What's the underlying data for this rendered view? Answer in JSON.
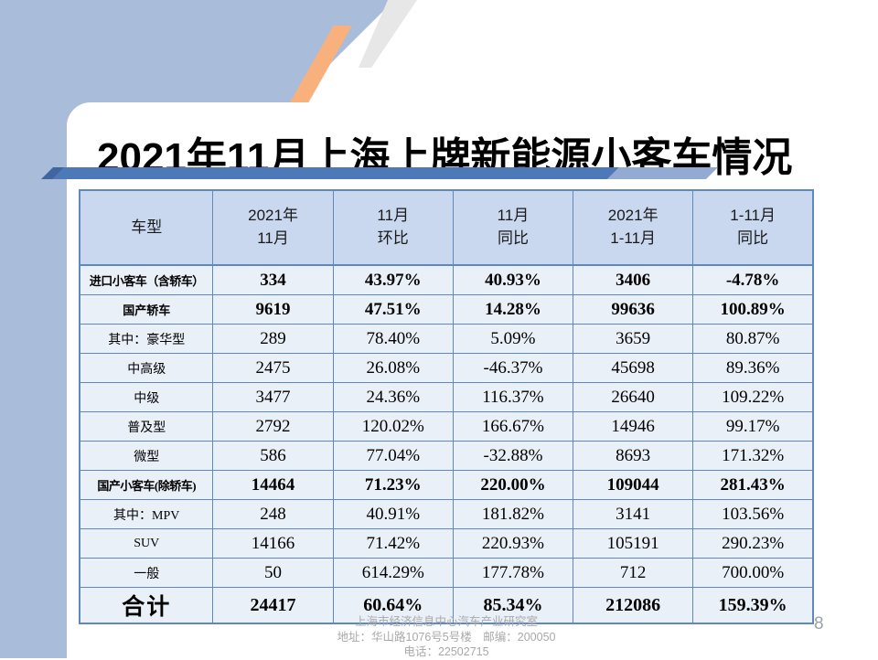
{
  "slide": {
    "title": "2021年11月上海上牌新能源小客车情况",
    "page_number": "8",
    "footer": {
      "line1": "上海市经济信息中心汽车产业研究室",
      "line2": "地址：华山路1076号5号楼　邮编：200050",
      "line3": "电话：22502715"
    }
  },
  "colors": {
    "band_blue": "#a9bcd9",
    "accent_bar_blue": "#4d79b8",
    "accent_bar_light": "#93abd3",
    "accent_bar_dark": "#40669f",
    "stripe_orange": "#f8b17c",
    "stripe_gray": "#e7e7e7",
    "table_border": "#5f88bd",
    "header_fill": "#c9d8ef",
    "row_fill": "#eaf0f8",
    "footer_gray": "#a9a9a9"
  },
  "table": {
    "headers": [
      {
        "l1": "车型",
        "l2": ""
      },
      {
        "l1": "2021年",
        "l2": "11月"
      },
      {
        "l1": "11月",
        "l2": "环比"
      },
      {
        "l1": "11月",
        "l2": "同比"
      },
      {
        "l1": "2021年",
        "l2": "1-11月"
      },
      {
        "l1": "1-11月",
        "l2": "同比"
      }
    ],
    "rows": [
      {
        "label": "进口小客车（含轿车）",
        "bold": true,
        "total": false,
        "values": [
          "334",
          "43.97%",
          "40.93%",
          "3406",
          "-4.78%"
        ]
      },
      {
        "label": "国产轿车",
        "bold": true,
        "total": false,
        "values": [
          "9619",
          "47.51%",
          "14.28%",
          "99636",
          "100.89%"
        ]
      },
      {
        "label": "其中：豪华型",
        "bold": false,
        "total": false,
        "values": [
          "289",
          "78.40%",
          "5.09%",
          "3659",
          "80.87%"
        ]
      },
      {
        "label": "中高级",
        "bold": false,
        "total": false,
        "values": [
          "2475",
          "26.08%",
          "-46.37%",
          "45698",
          "89.36%"
        ]
      },
      {
        "label": "中级",
        "bold": false,
        "total": false,
        "values": [
          "3477",
          "24.36%",
          "116.37%",
          "26640",
          "109.22%"
        ]
      },
      {
        "label": "普及型",
        "bold": false,
        "total": false,
        "values": [
          "2792",
          "120.02%",
          "166.67%",
          "14946",
          "99.17%"
        ]
      },
      {
        "label": "微型",
        "bold": false,
        "total": false,
        "values": [
          "586",
          "77.04%",
          "-32.88%",
          "8693",
          "171.32%"
        ]
      },
      {
        "label": "国产小客车(除轿车)",
        "bold": true,
        "total": false,
        "values": [
          "14464",
          "71.23%",
          "220.00%",
          "109044",
          "281.43%"
        ]
      },
      {
        "label": "其中：MPV",
        "bold": false,
        "total": false,
        "values": [
          "248",
          "40.91%",
          "181.82%",
          "3141",
          "103.56%"
        ]
      },
      {
        "label": "SUV",
        "bold": false,
        "total": false,
        "values": [
          "14166",
          "71.42%",
          "220.93%",
          "105191",
          "290.23%"
        ]
      },
      {
        "label": "一般",
        "bold": false,
        "total": false,
        "values": [
          "50",
          "614.29%",
          "177.78%",
          "712",
          "700.00%"
        ]
      },
      {
        "label": "合计",
        "bold": true,
        "total": true,
        "values": [
          "24417",
          "60.64%",
          "85.34%",
          "212086",
          "159.39%"
        ]
      }
    ]
  }
}
